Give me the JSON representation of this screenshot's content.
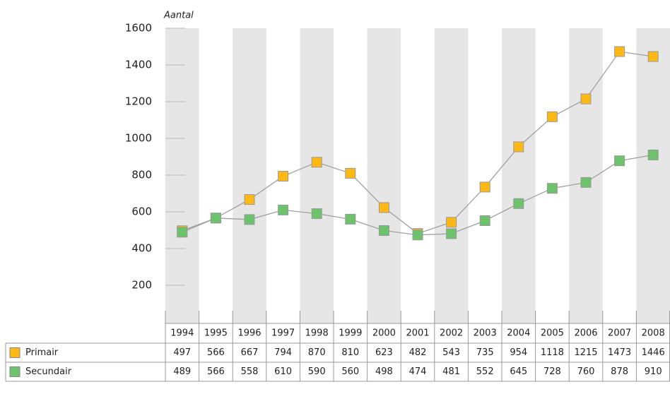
{
  "chart_data": {
    "type": "line",
    "y_axis_title": "Aantal",
    "categories": [
      "1994",
      "1995",
      "1996",
      "1997",
      "1998",
      "1999",
      "2000",
      "2001",
      "2002",
      "2003",
      "2004",
      "2005",
      "2006",
      "2007",
      "2008"
    ],
    "series": [
      {
        "name": "Primair",
        "color": "#fdb813",
        "values": [
          497,
          566,
          667,
          794,
          870,
          810,
          623,
          482,
          543,
          735,
          954,
          1118,
          1215,
          1473,
          1446
        ]
      },
      {
        "name": "Secundair",
        "color": "#6cc36c",
        "values": [
          489,
          566,
          558,
          610,
          590,
          560,
          498,
          474,
          481,
          552,
          645,
          728,
          760,
          878,
          910
        ]
      }
    ],
    "ylim": [
      0,
      1600
    ],
    "yticks": [
      200,
      400,
      600,
      800,
      1000,
      1200,
      1400,
      1600
    ]
  }
}
